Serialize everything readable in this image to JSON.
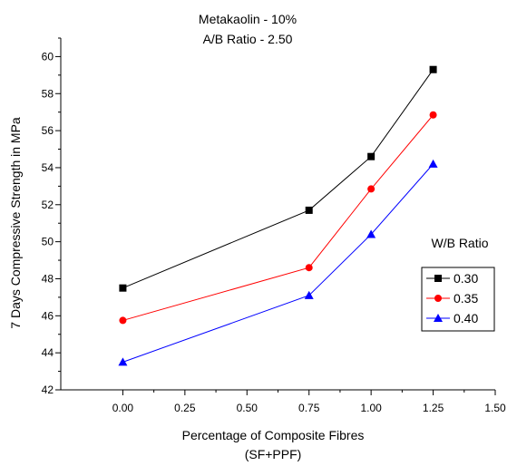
{
  "chart_data": {
    "type": "line",
    "title_lines": [
      "Metakaolin - 10%",
      "A/B Ratio   - 2.50"
    ],
    "xlabel_lines": [
      "Percentage of Composite Fibres",
      "(SF+PPF)"
    ],
    "ylabel": "7 Days Compressive Strength in MPa",
    "xlim": [
      -0.25,
      1.5
    ],
    "ylim": [
      42,
      61
    ],
    "x_ticks": [
      "0.00",
      "0.25",
      "0.50",
      "0.75",
      "1.00",
      "1.25",
      "1.50"
    ],
    "y_ticks": [
      "42",
      "44",
      "46",
      "48",
      "50",
      "52",
      "54",
      "56",
      "58",
      "60"
    ],
    "x": [
      0.0,
      0.75,
      1.0,
      1.25
    ],
    "grid": false,
    "legend_title": "W/B Ratio",
    "legend_position": "right",
    "series": [
      {
        "name": "0.30",
        "values": [
          47.5,
          51.7,
          54.6,
          59.3
        ],
        "color": "#000000",
        "marker": "square"
      },
      {
        "name": "0.35",
        "values": [
          45.75,
          48.6,
          52.85,
          56.85
        ],
        "color": "#ff0000",
        "marker": "circle"
      },
      {
        "name": "0.40",
        "values": [
          43.5,
          47.1,
          50.4,
          54.2
        ],
        "color": "#0000ff",
        "marker": "triangle"
      }
    ]
  }
}
